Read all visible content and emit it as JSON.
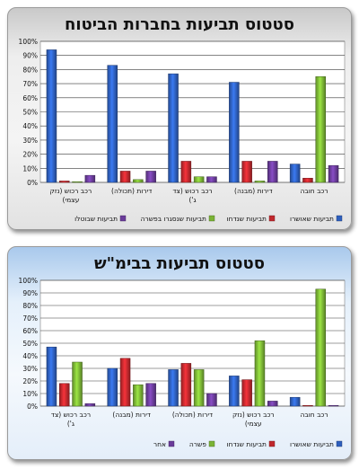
{
  "chart_data": [
    {
      "type": "bar",
      "title": "סטטוס תביעות בחברות הביטוח",
      "ylim": [
        0,
        100
      ],
      "yticks": [
        "0%",
        "10%",
        "20%",
        "30%",
        "40%",
        "50%",
        "60%",
        "70%",
        "80%",
        "90%",
        "100%"
      ],
      "grid": true,
      "legend": "bottom",
      "categories": [
        "רכב רכוש (נזק עצמי)",
        "דירות (תכולה)",
        "רכב רכוש (צד ג')",
        "דירות (מבנה)",
        "רכב חובה"
      ],
      "series": [
        {
          "name": "תביעות שאושרו",
          "color": "#2e5fbd",
          "values": [
            94,
            83,
            77,
            71,
            13
          ]
        },
        {
          "name": "תביעות שנדחו",
          "color": "#c0282d",
          "values": [
            1,
            8,
            15,
            15,
            3
          ]
        },
        {
          "name": "תביעות שנסגרו בפשרה",
          "color": "#7ab335",
          "values": [
            0,
            2,
            4,
            1,
            75
          ]
        },
        {
          "name": "תביעות שבוטלו",
          "color": "#6a3c9a",
          "values": [
            5,
            8,
            4,
            15,
            12
          ]
        }
      ]
    },
    {
      "type": "bar",
      "title": "סטטוס תביעות בבימ\"ש",
      "ylim": [
        0,
        100
      ],
      "yticks": [
        "0%",
        "10%",
        "20%",
        "30%",
        "40%",
        "50%",
        "60%",
        "70%",
        "80%",
        "90%",
        "100%"
      ],
      "grid": true,
      "legend": "bottom",
      "categories": [
        "רכב רכוש (צד ג')",
        "דירות (מבנה)",
        "דירות (תכולה)",
        "רכב רכוש (נזק עצמי)",
        "רכב חובה"
      ],
      "series": [
        {
          "name": "תביעות שאושרו",
          "color": "#2e5fbd",
          "values": [
            47,
            30,
            29,
            24,
            7
          ]
        },
        {
          "name": "תביעות שנדחו",
          "color": "#c0282d",
          "values": [
            18,
            38,
            34,
            21,
            0
          ]
        },
        {
          "name": "פשרה",
          "color": "#7ab335",
          "values": [
            35,
            17,
            29,
            52,
            93
          ]
        },
        {
          "name": "אחר",
          "color": "#6a3c9a",
          "values": [
            2,
            18,
            10,
            4,
            0
          ]
        }
      ]
    }
  ]
}
